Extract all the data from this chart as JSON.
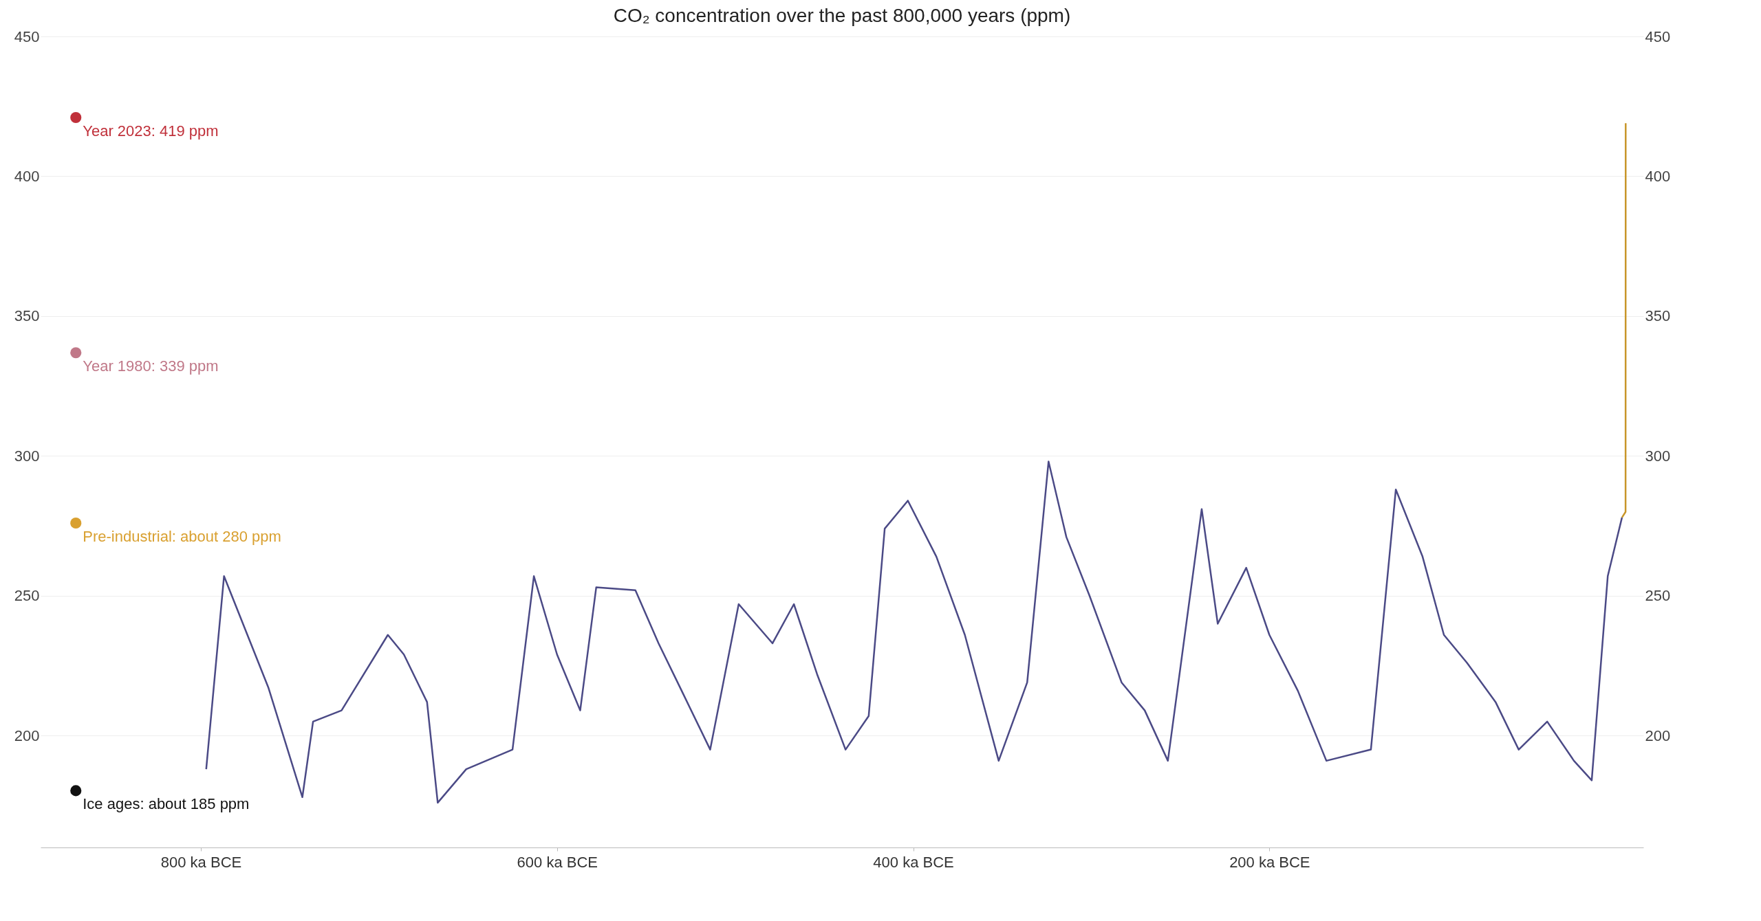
{
  "chart_data": {
    "type": "line",
    "title": "CO₂ concentration over the past 800,000 years (ppm)",
    "xlim": [
      -890,
      10
    ],
    "xticks": [
      {
        "value": -800,
        "label": "800 ka BCE"
      },
      {
        "value": -600,
        "label": "600 ka BCE"
      },
      {
        "value": -400,
        "label": "400 ka BCE"
      },
      {
        "value": -200,
        "label": "200 ka BCE"
      }
    ],
    "ylim": [
      160,
      450
    ],
    "yticks": [
      200,
      250,
      300,
      350,
      400,
      450
    ],
    "y2lim": [
      160,
      450
    ],
    "y2ticks": [
      200,
      250,
      300,
      350,
      400,
      450
    ],
    "grid": "y",
    "series": [
      {
        "color": "#4b4a86",
        "x": [
          -797,
          -787,
          -762,
          -743,
          -737,
          -721,
          -695,
          -686,
          -673,
          -667,
          -651,
          -625,
          -613,
          -600,
          -587,
          -578,
          -556,
          -543,
          -530,
          -514,
          -498,
          -479,
          -467,
          -454,
          -438,
          -425,
          -416,
          -403,
          -387,
          -371,
          -352,
          -336,
          -324,
          -314,
          -301,
          -283,
          -270,
          -257,
          -238,
          -229,
          -213,
          -200,
          -184,
          -168,
          -143,
          -129,
          -114,
          -102,
          -89,
          -73,
          -60,
          -44,
          -29,
          -19,
          -10,
          -2
        ],
        "values": [
          188,
          257,
          217,
          178,
          205,
          209,
          236,
          229,
          212,
          176,
          188,
          195,
          257,
          229,
          209,
          253,
          252,
          233,
          216,
          195,
          247,
          233,
          247,
          222,
          195,
          207,
          274,
          284,
          264,
          236,
          191,
          219,
          298,
          271,
          250,
          219,
          209,
          191,
          281,
          240,
          260,
          236,
          216,
          191,
          195,
          288,
          264,
          236,
          226,
          212,
          195,
          205,
          191,
          184,
          257,
          278
        ]
      },
      {
        "color": "#c8962a",
        "x": [
          -2,
          0,
          0.07
        ],
        "values": [
          278,
          280,
          419
        ]
      }
    ],
    "annotations": [
      "Year 2023: 419 ppm",
      "Year 1980: 339 ppm",
      "Pre-industrial: about 280 ppm",
      "Ice ages: about 185 ppm"
    ]
  }
}
